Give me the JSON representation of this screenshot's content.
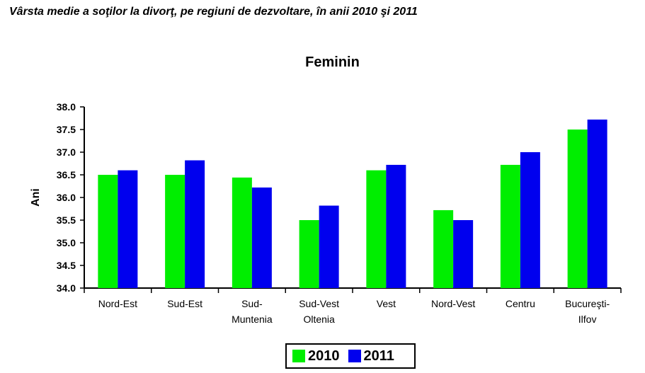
{
  "page_title": "Vârsta medie a soţilor la divorţ, pe regiuni de dezvoltare, în anii 2010 şi 2011",
  "chart_data": {
    "type": "bar",
    "title": "Feminin",
    "ylabel": "Ani",
    "xlabel": "",
    "ylim": [
      34.0,
      38.0
    ],
    "yticks": [
      "34.0",
      "34.5",
      "35.0",
      "35.5",
      "36.0",
      "36.5",
      "37.0",
      "37.5",
      "38.0"
    ],
    "categories": [
      [
        "Nord-Est"
      ],
      [
        "Sud-Est"
      ],
      [
        "Sud-",
        "Muntenia"
      ],
      [
        "Sud-Vest",
        "Oltenia"
      ],
      [
        "Vest"
      ],
      [
        "Nord-Vest"
      ],
      [
        "Centru"
      ],
      [
        "Bucureşti-",
        "Ilfov"
      ]
    ],
    "series": [
      {
        "name": "2010",
        "color": "#00ee00",
        "values": [
          36.5,
          36.5,
          36.44,
          35.5,
          36.6,
          35.72,
          36.72,
          37.5
        ]
      },
      {
        "name": "2011",
        "color": "#0000ee",
        "values": [
          36.6,
          36.82,
          36.22,
          35.82,
          36.72,
          35.5,
          37.0,
          37.72
        ]
      }
    ],
    "grid": false,
    "legend_position": "bottom"
  }
}
